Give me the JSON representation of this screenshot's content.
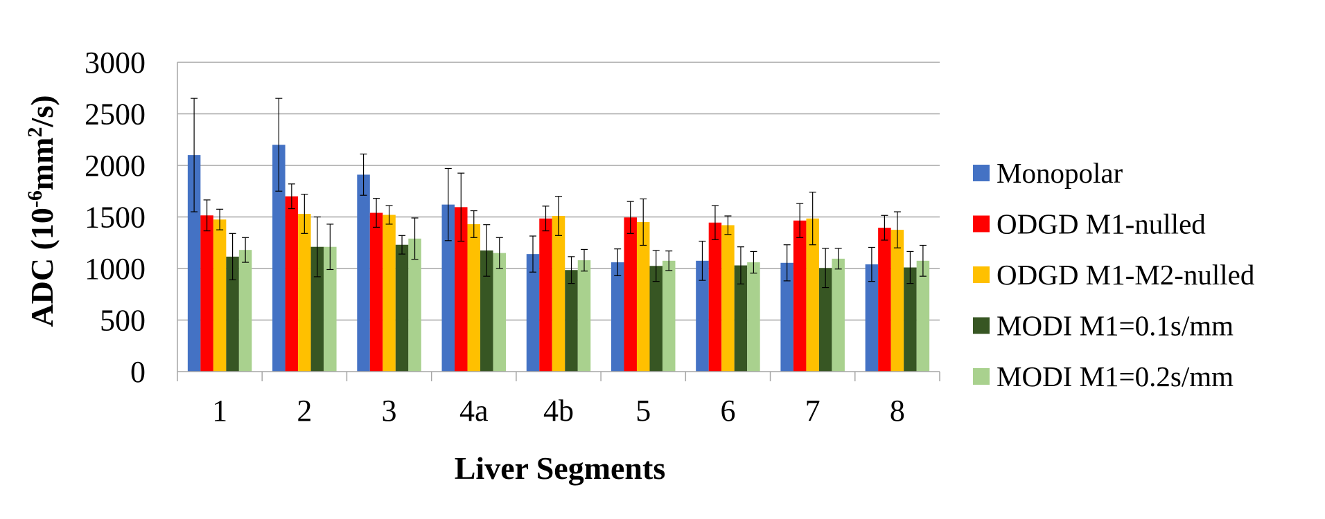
{
  "chart_data": {
    "type": "bar",
    "title": "",
    "xlabel": "Liver Segments",
    "ylabel": "ADC (10",
    "ylabel_sup1": "-6",
    "ylabel_mid": "mm",
    "ylabel_sup2": "2",
    "ylabel_end": "/s)",
    "ylim": [
      0,
      3000
    ],
    "yticks": [
      "0",
      "500",
      "1000",
      "1500",
      "2000",
      "2500",
      "3000"
    ],
    "ytick_values": [
      0,
      500,
      1000,
      1500,
      2000,
      2500,
      3000
    ],
    "grid": true,
    "legend_position": "right",
    "categories": [
      "1",
      "2",
      "3",
      "4a",
      "4b",
      "5",
      "6",
      "7",
      "8"
    ],
    "series": [
      {
        "name": "Monopolar",
        "color": "#4472C4",
        "values": [
          2100,
          2200,
          1910,
          1620,
          1140,
          1060,
          1075,
          1055,
          1040
        ],
        "errors": [
          550,
          450,
          200,
          350,
          175,
          130,
          190,
          175,
          165
        ]
      },
      {
        "name": "ODGD M1-nulled",
        "color": "#FF0000",
        "values": [
          1515,
          1700,
          1540,
          1595,
          1485,
          1495,
          1445,
          1465,
          1395
        ],
        "errors": [
          150,
          120,
          140,
          330,
          120,
          155,
          165,
          165,
          120
        ]
      },
      {
        "name": "ODGD M1-M2-nulled",
        "color": "#FFC000",
        "values": [
          1475,
          1530,
          1520,
          1430,
          1510,
          1450,
          1420,
          1485,
          1375
        ],
        "errors": [
          100,
          190,
          90,
          130,
          190,
          225,
          90,
          255,
          175
        ]
      },
      {
        "name": "MODI M1=0.1s/mm",
        "color": "#375623",
        "values": [
          1115,
          1210,
          1230,
          1175,
          985,
          1025,
          1030,
          1005,
          1010
        ],
        "errors": [
          225,
          290,
          90,
          250,
          130,
          150,
          180,
          190,
          155
        ]
      },
      {
        "name": "MODI M1=0.2s/mm",
        "color": "#A9D18E",
        "values": [
          1180,
          1210,
          1290,
          1150,
          1080,
          1075,
          1060,
          1095,
          1075
        ],
        "errors": [
          120,
          220,
          200,
          150,
          105,
          95,
          105,
          100,
          150
        ]
      }
    ]
  }
}
